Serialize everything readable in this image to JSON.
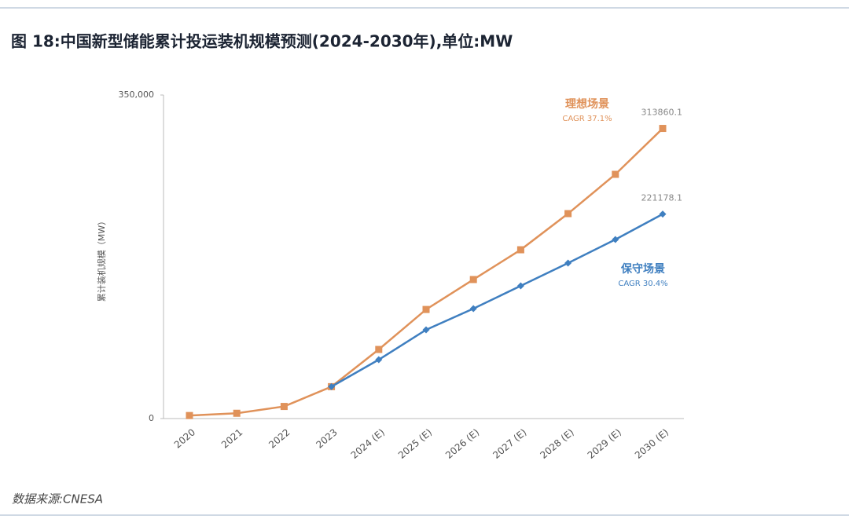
{
  "chart_data": {
    "type": "line",
    "title": "图 18:中国新型储能累计投运装机规模预测(2024-2030年),单位:MW",
    "y_label": "累计装机规模（MW）",
    "source": "数据来源:CNESA",
    "categories": [
      "2020",
      "2021",
      "2022",
      "2023",
      "2024 (E)",
      "2025 (E)",
      "2026 (E)",
      "2027 (E)",
      "2028 (E)",
      "2029 (E)",
      "2030 (E)"
    ],
    "series": [
      {
        "name": "理想场景",
        "note": "CAGR 37.1%",
        "color": "#e0925a",
        "marker": "square",
        "values": [
          3269,
          5729,
          13100,
          34500,
          74750,
          118000,
          150400,
          182600,
          221700,
          264200,
          313860.1
        ]
      },
      {
        "name": "保守场景",
        "note": "CAGR 30.4%",
        "color": "#3f7fc0",
        "marker": "diamond",
        "values": [
          null,
          null,
          null,
          34500,
          63700,
          96000,
          118900,
          143600,
          168200,
          193700,
          221178.1
        ]
      }
    ],
    "ylim": [
      0,
      350000
    ],
    "yticks": [
      {
        "value": 0,
        "label": "0"
      },
      {
        "value": 350000,
        "label": "350,000"
      }
    ]
  }
}
